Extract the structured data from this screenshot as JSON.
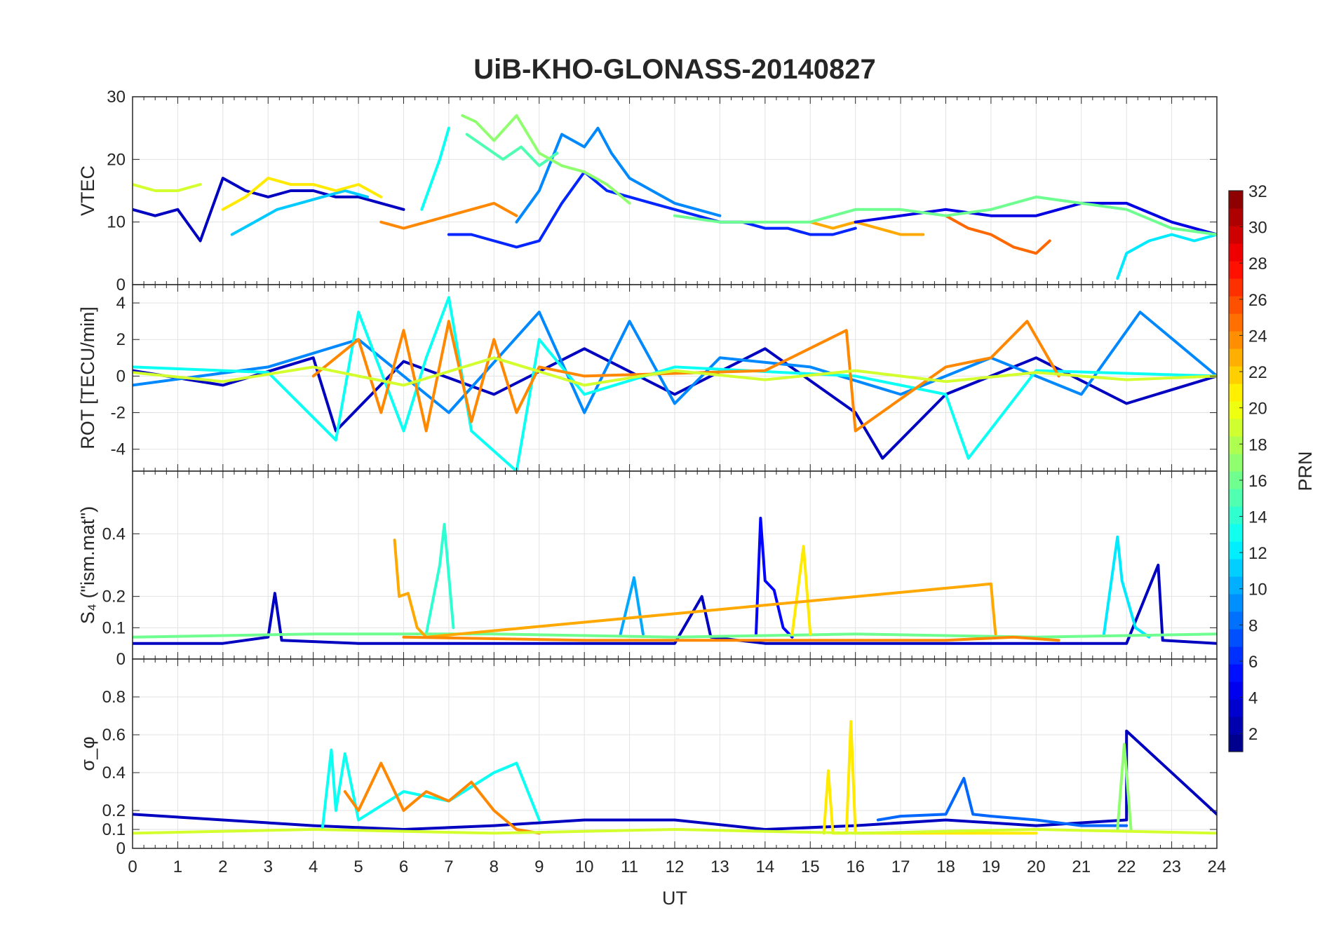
{
  "figure": {
    "title": "UiB-KHO-GLONASS-20140827",
    "xlabel": "UT",
    "xticks": [
      "0",
      "1",
      "2",
      "3",
      "4",
      "5",
      "6",
      "7",
      "8",
      "9",
      "10",
      "11",
      "12",
      "13",
      "14",
      "15",
      "16",
      "17",
      "18",
      "19",
      "20",
      "21",
      "22",
      "23",
      "24"
    ]
  },
  "colorbar": {
    "label": "PRN",
    "ticks": [
      "2",
      "4",
      "6",
      "8",
      "10",
      "12",
      "14",
      "16",
      "18",
      "20",
      "22",
      "24",
      "26",
      "28",
      "30",
      "32"
    ],
    "range": [
      1,
      32
    ],
    "colormap": "jet"
  },
  "chart_data": [
    {
      "type": "line",
      "panel": "VTEC",
      "ylabel": "VTEC",
      "ylim": [
        0,
        30
      ],
      "yticks": [
        "0",
        "10",
        "20",
        "30"
      ],
      "xlim": [
        0,
        24
      ],
      "grid": true,
      "series": [
        {
          "prn": 3,
          "x": [
            0,
            0.5,
            1,
            1.5,
            2,
            2.5,
            3,
            3.5,
            4,
            4.5,
            5,
            5.5,
            6
          ],
          "y": [
            12,
            11,
            12,
            7,
            17,
            15,
            14,
            15,
            15,
            14,
            14,
            13,
            12
          ]
        },
        {
          "prn": 6,
          "x": [
            7,
            7.5,
            8,
            8.5,
            9,
            9.5,
            10,
            10.5,
            11,
            11.5,
            12,
            12.5,
            13,
            13.5,
            14,
            14.5,
            15,
            15.5,
            16
          ],
          "y": [
            8,
            8,
            7,
            6,
            7,
            13,
            18,
            15,
            14,
            13,
            12,
            11,
            10,
            10,
            9,
            9,
            8,
            8,
            9
          ]
        },
        {
          "prn": 9,
          "x": [
            8.5,
            9,
            9.5,
            10,
            10.3,
            10.6,
            11,
            11.5,
            12,
            12.5,
            13
          ],
          "y": [
            10,
            15,
            24,
            22,
            25,
            21,
            17,
            15,
            13,
            12,
            11
          ]
        },
        {
          "prn": 11,
          "x": [
            2.2,
            2.7,
            3.2,
            3.7,
            4.2,
            4.7,
            5.2
          ],
          "y": [
            8,
            10,
            12,
            13,
            14,
            15,
            14
          ]
        },
        {
          "prn": 13,
          "x": [
            6.4,
            6.8,
            7
          ],
          "y": [
            12,
            20,
            25
          ]
        },
        {
          "prn": 15,
          "x": [
            7.4,
            7.8,
            8.2,
            8.6,
            9,
            9.4
          ],
          "y": [
            24,
            22,
            20,
            22,
            19,
            21
          ]
        },
        {
          "prn": 17,
          "x": [
            7.3,
            7.6,
            8,
            8.5,
            9,
            9.5,
            10,
            10.5,
            11
          ],
          "y": [
            27,
            26,
            23,
            27,
            21,
            19,
            18,
            16,
            13
          ]
        },
        {
          "prn": 19,
          "x": [
            0,
            0.5,
            1,
            1.5
          ],
          "y": [
            16,
            15,
            15,
            16
          ]
        },
        {
          "prn": 21,
          "x": [
            2,
            2.5,
            3,
            3.5,
            4,
            4.5,
            5,
            5.5
          ],
          "y": [
            12,
            14,
            17,
            16,
            16,
            15,
            16,
            14
          ]
        },
        {
          "prn": 23,
          "x": [
            15,
            15.5,
            16,
            16.5,
            17,
            17.5
          ],
          "y": [
            10,
            9,
            10,
            9,
            8,
            8
          ]
        },
        {
          "prn": 24,
          "x": [
            5.5,
            6,
            6.5,
            7,
            7.5,
            8,
            8.5
          ],
          "y": [
            10,
            9,
            10,
            11,
            12,
            13,
            11
          ]
        },
        {
          "prn": 25,
          "x": [
            18,
            18.5,
            19,
            19.5,
            20,
            20.3
          ],
          "y": [
            11,
            9,
            8,
            6,
            5,
            7
          ]
        },
        {
          "prn": 4,
          "x": [
            16,
            17,
            18,
            19,
            20,
            21,
            22,
            23,
            24
          ],
          "y": [
            10,
            11,
            12,
            11,
            11,
            13,
            13,
            10,
            8
          ]
        },
        {
          "prn": 12,
          "x": [
            21.8,
            22,
            22.5,
            23,
            23.5,
            24
          ],
          "y": [
            1,
            5,
            7,
            8,
            7,
            8
          ]
        },
        {
          "prn": 16,
          "x": [
            12,
            13,
            14,
            15,
            16,
            17,
            18,
            19,
            20,
            21,
            22,
            23,
            24
          ],
          "y": [
            11,
            10,
            10,
            10,
            12,
            12,
            11,
            12,
            14,
            13,
            12,
            9,
            8
          ]
        }
      ]
    },
    {
      "type": "line",
      "panel": "ROT",
      "ylabel": "ROT [TECU/min]",
      "ylim": [
        -5.2,
        5
      ],
      "yticks": [
        "-4",
        "-2",
        "0",
        "2",
        "4"
      ],
      "xlim": [
        0,
        24
      ],
      "grid": true,
      "series": [
        {
          "prn": 3,
          "x": [
            0,
            2,
            4,
            4.5,
            6,
            8,
            10,
            12,
            14,
            16,
            16.6,
            18,
            20,
            22,
            24
          ],
          "y": [
            0.3,
            -0.5,
            1,
            -3,
            0.8,
            -1,
            1.5,
            -1,
            1.5,
            -2,
            -4.5,
            -1,
            1,
            -1.5,
            0
          ]
        },
        {
          "prn": 9,
          "x": [
            0,
            3,
            5,
            7,
            9,
            10,
            11,
            12,
            13,
            15,
            17,
            19,
            21,
            22.3,
            24
          ],
          "y": [
            -0.5,
            0.5,
            2,
            -2,
            3.5,
            -2,
            3,
            -1.5,
            1,
            0.5,
            -1,
            1,
            -1,
            3.5,
            0
          ]
        },
        {
          "prn": 13,
          "x": [
            0,
            3,
            4.5,
            5,
            6,
            6.5,
            7,
            7.5,
            8.5,
            9,
            10,
            12,
            16,
            18,
            18.5,
            20,
            24
          ],
          "y": [
            0.5,
            0.2,
            -3.5,
            3.5,
            -3,
            1,
            4.3,
            -3,
            -5.2,
            2,
            -1,
            0.5,
            0,
            -1,
            -4.5,
            0.3,
            0
          ]
        },
        {
          "prn": 24,
          "x": [
            4,
            5,
            5.5,
            6,
            6.5,
            7,
            7.5,
            8,
            8.5,
            9,
            10,
            14,
            15.8,
            16,
            18,
            19,
            19.8,
            20.5
          ],
          "y": [
            0,
            2,
            -2,
            2.5,
            -3,
            3,
            -2.5,
            2,
            -2,
            0.5,
            0,
            0.3,
            2.5,
            -3,
            0.5,
            1,
            3,
            0
          ]
        },
        {
          "prn": 19,
          "x": [
            0,
            2,
            4,
            6,
            8,
            10,
            12,
            14,
            16,
            18,
            20,
            22,
            24
          ],
          "y": [
            0.2,
            -0.3,
            0.5,
            -0.5,
            1,
            -0.5,
            0.3,
            -0.2,
            0.3,
            -0.3,
            0.2,
            -0.2,
            0
          ]
        }
      ]
    },
    {
      "type": "line",
      "panel": "S4",
      "ylabel": "S₄ (\"ism.mat\")",
      "ylim": [
        0,
        0.6
      ],
      "yticks": [
        "0",
        "0.1",
        "0.2",
        "0.4"
      ],
      "xlim": [
        0,
        24
      ],
      "grid": true,
      "series": [
        {
          "prn": 3,
          "x": [
            0,
            2,
            3,
            3.15,
            3.3,
            5,
            8,
            12,
            12.6,
            12.8,
            14,
            16,
            18,
            20,
            22,
            22.7,
            22.8,
            24
          ],
          "y": [
            0.05,
            0.05,
            0.07,
            0.21,
            0.06,
            0.05,
            0.05,
            0.05,
            0.2,
            0.07,
            0.05,
            0.05,
            0.05,
            0.05,
            0.05,
            0.3,
            0.06,
            0.05
          ]
        },
        {
          "prn": 5,
          "x": [
            13.8,
            13.9,
            14,
            14.2,
            14.4,
            14.6
          ],
          "y": [
            0.08,
            0.45,
            0.25,
            0.22,
            0.1,
            0.07
          ]
        },
        {
          "prn": 10,
          "x": [
            10.8,
            11.1,
            11.3
          ],
          "y": [
            0.08,
            0.26,
            0.08
          ]
        },
        {
          "prn": 12,
          "x": [
            21.5,
            21.8,
            21.9,
            22.2,
            22.5
          ],
          "y": [
            0.08,
            0.39,
            0.25,
            0.1,
            0.07
          ]
        },
        {
          "prn": 14,
          "x": [
            6.5,
            6.8,
            6.9,
            7.1
          ],
          "y": [
            0.08,
            0.3,
            0.43,
            0.1
          ]
        },
        {
          "prn": 16,
          "x": [
            0,
            4,
            8,
            12,
            16,
            20,
            24
          ],
          "y": [
            0.07,
            0.08,
            0.08,
            0.07,
            0.08,
            0.07,
            0.08
          ]
        },
        {
          "prn": 21,
          "x": [
            14.6,
            14.85,
            15
          ],
          "y": [
            0.08,
            0.36,
            0.08
          ]
        },
        {
          "prn": 23,
          "x": [
            5.8,
            5.9,
            6.1,
            6.3,
            6.5,
            19,
            19.1
          ],
          "y": [
            0.38,
            0.2,
            0.21,
            0.1,
            0.07,
            0.24,
            0.08
          ]
        },
        {
          "prn": 24,
          "x": [
            6,
            10,
            14,
            16,
            18,
            19.5,
            20.5
          ],
          "y": [
            0.07,
            0.06,
            0.06,
            0.06,
            0.06,
            0.07,
            0.06
          ]
        }
      ]
    },
    {
      "type": "line",
      "panel": "sigma_phi",
      "ylabel": "σ_φ",
      "ylim": [
        0,
        1
      ],
      "yticks": [
        "0",
        "0.1",
        "0.2",
        "0.4",
        "0.6",
        "0.8"
      ],
      "xlim": [
        0,
        24
      ],
      "grid": true,
      "series": [
        {
          "prn": 3,
          "x": [
            0,
            2,
            4,
            6,
            8,
            10,
            12,
            14,
            16,
            18,
            20,
            22,
            22,
            24
          ],
          "y": [
            0.18,
            0.15,
            0.12,
            0.1,
            0.12,
            0.15,
            0.15,
            0.1,
            0.12,
            0.15,
            0.12,
            0.15,
            0.62,
            0.18
          ]
        },
        {
          "prn": 8,
          "x": [
            16.5,
            17,
            18,
            18.4,
            18.6,
            19,
            20,
            21,
            22
          ],
          "y": [
            0.15,
            0.17,
            0.18,
            0.37,
            0.18,
            0.17,
            0.15,
            0.12,
            0.12
          ]
        },
        {
          "prn": 13,
          "x": [
            4.2,
            4.4,
            4.5,
            4.7,
            5,
            6,
            7,
            8,
            8.5,
            9
          ],
          "y": [
            0.1,
            0.52,
            0.2,
            0.5,
            0.15,
            0.3,
            0.25,
            0.4,
            0.45,
            0.15
          ]
        },
        {
          "prn": 17,
          "x": [
            21.8,
            21.95,
            22.1
          ],
          "y": [
            0.1,
            0.55,
            0.1
          ]
        },
        {
          "prn": 21,
          "x": [
            15.3,
            15.4,
            15.5,
            15.8,
            15.9,
            16,
            18,
            20
          ],
          "y": [
            0.08,
            0.41,
            0.08,
            0.08,
            0.67,
            0.08,
            0.08,
            0.08
          ]
        },
        {
          "prn": 24,
          "x": [
            4.7,
            5,
            5.5,
            6,
            6.5,
            7,
            7.5,
            8,
            8.5,
            9
          ],
          "y": [
            0.3,
            0.2,
            0.45,
            0.2,
            0.3,
            0.25,
            0.35,
            0.2,
            0.1,
            0.08
          ]
        },
        {
          "prn": 19,
          "x": [
            0,
            4,
            8,
            12,
            16,
            20,
            24
          ],
          "y": [
            0.08,
            0.1,
            0.08,
            0.1,
            0.08,
            0.1,
            0.08
          ]
        }
      ]
    }
  ]
}
